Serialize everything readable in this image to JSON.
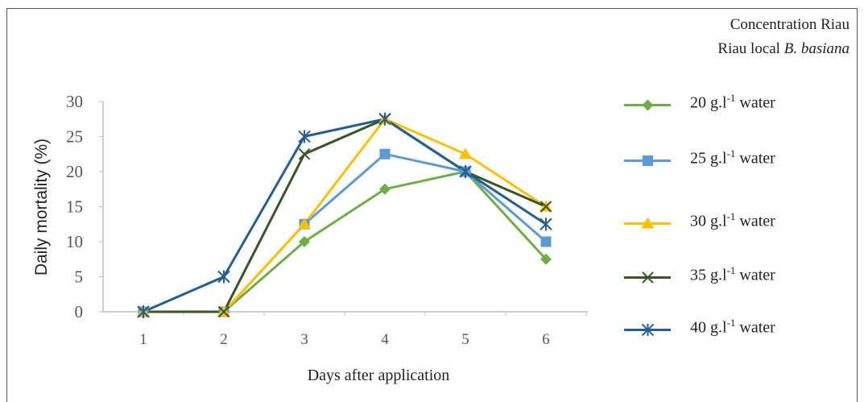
{
  "chart_data": {
    "type": "line",
    "x": [
      1,
      2,
      3,
      4,
      5,
      6
    ],
    "xlabel": "Days after application",
    "ylabel": "Daily mortality  (%)",
    "ylim": [
      0,
      30
    ],
    "yticks": [
      0,
      5,
      10,
      15,
      20,
      25,
      30
    ],
    "grid": false,
    "legend_placement": "right",
    "legend_title_line1": "Concentration  Riau",
    "legend_title_line2_prefix": "Riau local ",
    "legend_title_line2_italic": "B. basiana",
    "series": [
      {
        "name": "20 g.l-1 water",
        "label_prefix": "20 g.l",
        "label_sup": "-1",
        "label_suffix": " water",
        "color": "#70ad47",
        "marker": "diamond",
        "values": [
          0,
          0,
          10,
          17.5,
          20,
          7.5
        ]
      },
      {
        "name": "25 g.l-1 water",
        "label_prefix": "25 g.l",
        "label_sup": "-1",
        "label_suffix": " water",
        "color": "#5b9bd5",
        "marker": "square",
        "values": [
          0,
          0,
          12.5,
          22.5,
          20,
          10
        ]
      },
      {
        "name": "30 g.l-1 water",
        "label_prefix": "30 g.l",
        "label_sup": "-1",
        "label_suffix": " water",
        "color": "#ffc000",
        "marker": "triangle",
        "values": [
          0,
          0,
          12.5,
          27.5,
          22.5,
          15
        ]
      },
      {
        "name": "35 g.l-1 water",
        "label_prefix": "35 g.l",
        "label_sup": "-1",
        "label_suffix": " water",
        "color": "#375623",
        "marker": "x",
        "values": [
          0,
          0,
          22.5,
          27.5,
          20,
          15
        ]
      },
      {
        "name": "40 g.l-1 water",
        "label_prefix": "40 g.l",
        "label_sup": "-1",
        "label_suffix": " water",
        "color": "#255e91",
        "marker": "star",
        "values": [
          0,
          5,
          25,
          27.5,
          20,
          12.5
        ]
      }
    ]
  }
}
